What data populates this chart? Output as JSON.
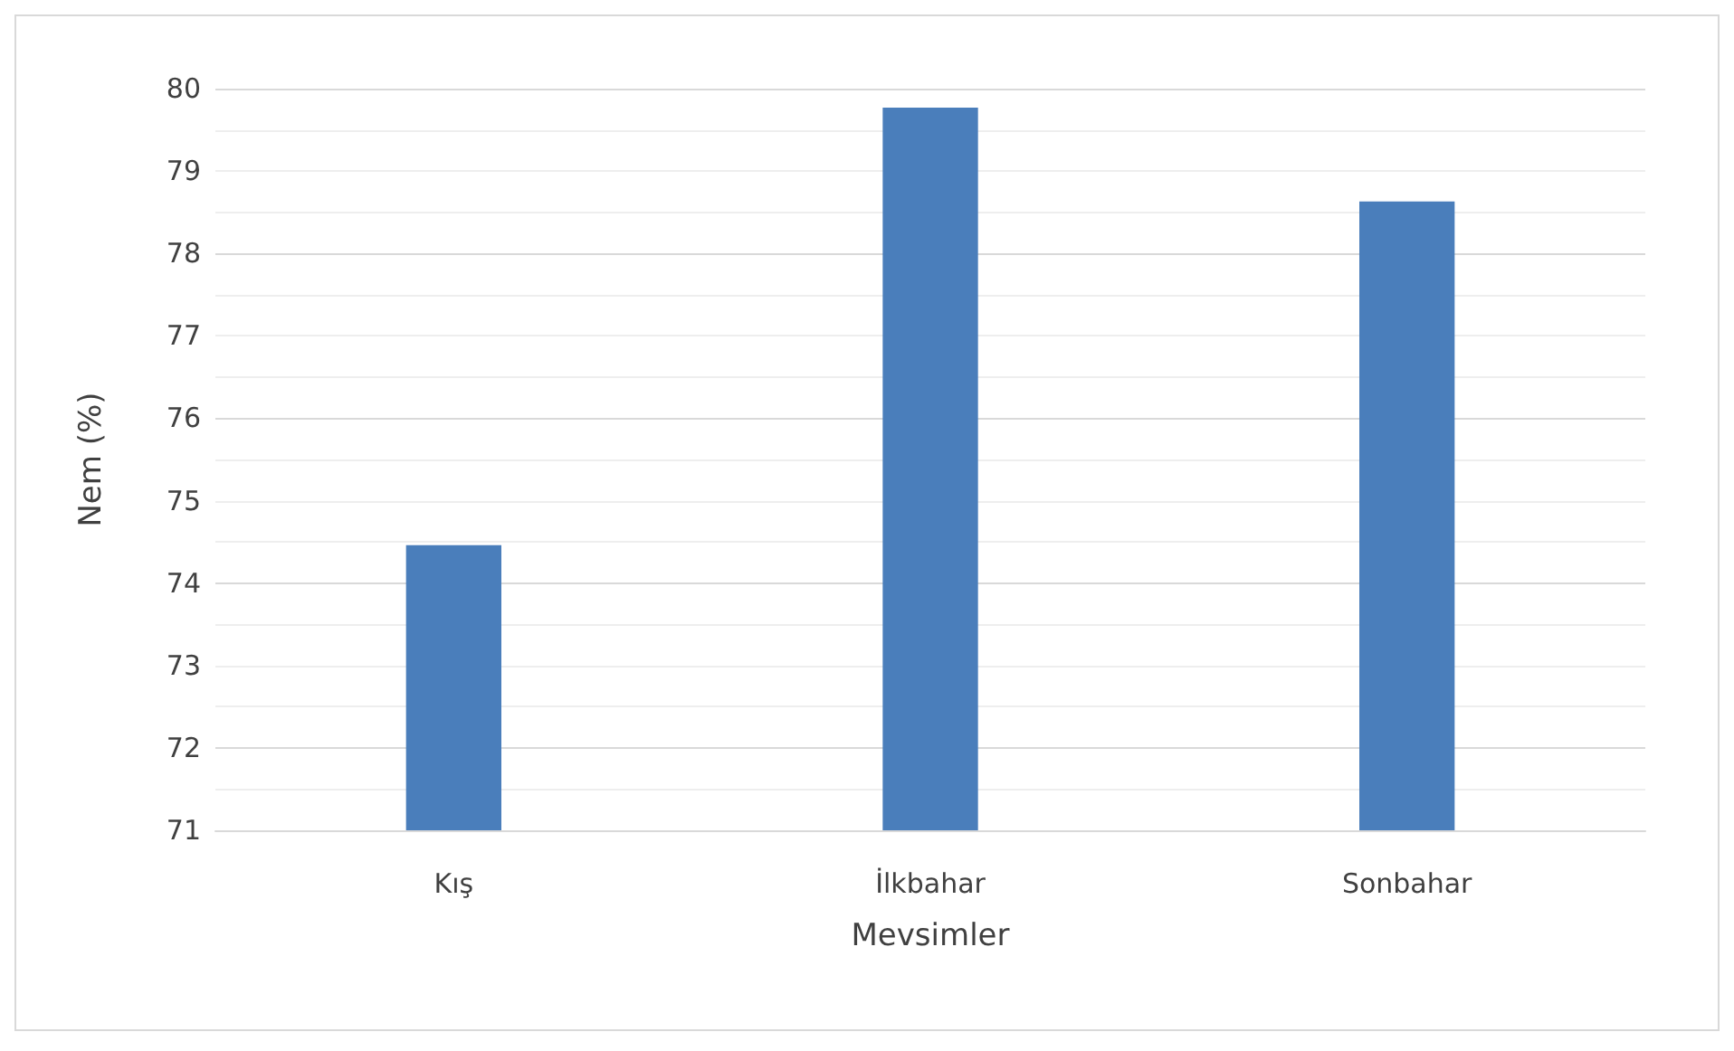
{
  "chart_data": {
    "type": "bar",
    "xlabel": "Mevsimler",
    "ylabel": "Nem (%)",
    "categories": [
      "Kış",
      "İlkbahar",
      "Sonbahar"
    ],
    "values": [
      74.46,
      79.77,
      78.63
    ],
    "color": "#4a7ebb",
    "ylim": [
      71,
      80
    ],
    "yticks": [
      71,
      72,
      73,
      74,
      75,
      76,
      77,
      78,
      79,
      80
    ],
    "grid": "y"
  }
}
